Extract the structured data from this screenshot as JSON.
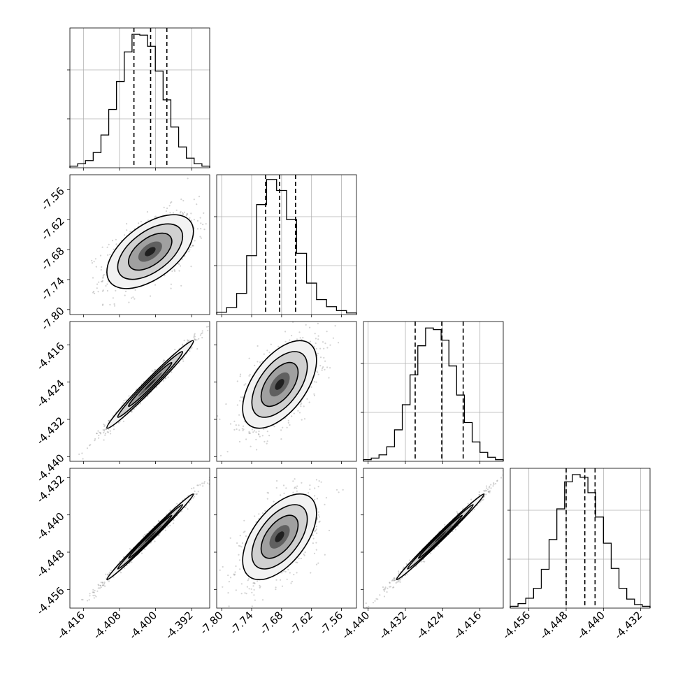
{
  "chart_data": {
    "type": "corner",
    "grid": true,
    "parameters": [
      {
        "range": [
          -4.419,
          -4.388
        ],
        "ticks": [
          "-4.416",
          "-4.408",
          "-4.400",
          "-4.392"
        ],
        "tick_values": [
          -4.416,
          -4.408,
          -4.4,
          -4.392
        ],
        "quantiles": [
          -4.4048,
          -4.4011,
          -4.3975
        ]
      },
      {
        "range": [
          -7.81,
          -7.53
        ],
        "ticks": [
          "-7.80",
          "-7.74",
          "-7.68",
          "-7.62",
          "-7.56"
        ],
        "tick_values": [
          -7.8,
          -7.74,
          -7.68,
          -7.62,
          -7.56
        ],
        "quantiles": [
          -7.712,
          -7.684,
          -7.652
        ]
      },
      {
        "range": [
          -4.441,
          -4.411
        ],
        "ticks": [
          "-4.440",
          "-4.432",
          "-4.424",
          "-4.416"
        ],
        "tick_values": [
          -4.44,
          -4.432,
          -4.424,
          -4.416
        ],
        "quantiles": [
          -4.4299,
          -4.4242,
          -4.4196
        ]
      },
      {
        "range": [
          -4.46,
          -4.43
        ],
        "ticks": [
          "-4.456",
          "-4.448",
          "-4.440",
          "-4.432"
        ],
        "tick_values": [
          -4.456,
          -4.448,
          -4.44,
          -4.432
        ],
        "quantiles": [
          -4.448,
          -4.444,
          -4.4418
        ]
      }
    ],
    "histograms": [
      {
        "param": 0,
        "counts": [
          2,
          5,
          9,
          19,
          41,
          73,
          108,
          145,
          167,
          166,
          152,
          121,
          85,
          51,
          26,
          12,
          5,
          2
        ],
        "ymax": 175
      },
      {
        "param": 1,
        "counts": [
          3,
          9,
          27,
          75,
          140,
          172,
          158,
          121,
          78,
          40,
          19,
          10,
          5,
          2
        ],
        "ymax": 178
      },
      {
        "param": 2,
        "counts": [
          2,
          4,
          8,
          18,
          39,
          70,
          107,
          143,
          165,
          163,
          150,
          118,
          82,
          48,
          24,
          11,
          5,
          2
        ],
        "ymax": 173
      },
      {
        "param": 3,
        "counts": [
          2,
          5,
          11,
          22,
          43,
          76,
          110,
          140,
          148,
          145,
          128,
          101,
          72,
          44,
          22,
          10,
          4,
          2
        ],
        "ymax": 155
      }
    ],
    "pairs": [
      {
        "x": 0,
        "y": 1,
        "rho": 0.55,
        "center": [
          -4.4012,
          -7.684
        ],
        "sigma": [
          0.0048,
          0.037
        ]
      },
      {
        "x": 0,
        "y": 2,
        "rho": 0.985,
        "center": [
          -4.4012,
          -4.4245
        ],
        "sigma": [
          0.0048,
          0.0047
        ]
      },
      {
        "x": 1,
        "y": 2,
        "rho": 0.55,
        "center": [
          -7.684,
          -4.4245
        ],
        "sigma": [
          0.037,
          0.0047
        ]
      },
      {
        "x": 0,
        "y": 3,
        "rho": 0.993,
        "center": [
          -4.4012,
          -4.4447
        ],
        "sigma": [
          0.0048,
          0.0046
        ]
      },
      {
        "x": 1,
        "y": 3,
        "rho": 0.55,
        "center": [
          -7.684,
          -4.4447
        ],
        "sigma": [
          0.037,
          0.0046
        ]
      },
      {
        "x": 2,
        "y": 3,
        "rho": 0.993,
        "center": [
          -4.4245,
          -4.4447
        ],
        "sigma": [
          0.0047,
          0.0046
        ]
      }
    ]
  }
}
